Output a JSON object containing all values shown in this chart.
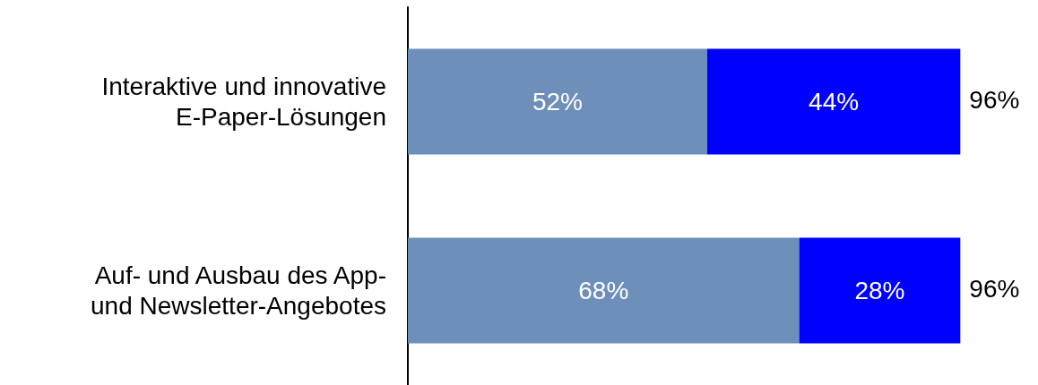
{
  "chart_data": {
    "type": "bar",
    "orientation": "horizontal",
    "stacked": true,
    "categories": [
      "Interaktive und innovative\nE-Paper-Lösungen",
      "Auf- und Ausbau des App-\nund Newsletter-Angebotes"
    ],
    "series": [
      {
        "color": "#6e8fb9",
        "values": [
          52,
          68
        ],
        "value_labels": [
          "52%",
          "68%"
        ]
      },
      {
        "color": "#0000ff",
        "values": [
          44,
          28
        ],
        "value_labels": [
          "44%",
          "28%"
        ]
      }
    ],
    "totals": [
      "96%",
      "96%"
    ],
    "tick_labels": "y"
  }
}
